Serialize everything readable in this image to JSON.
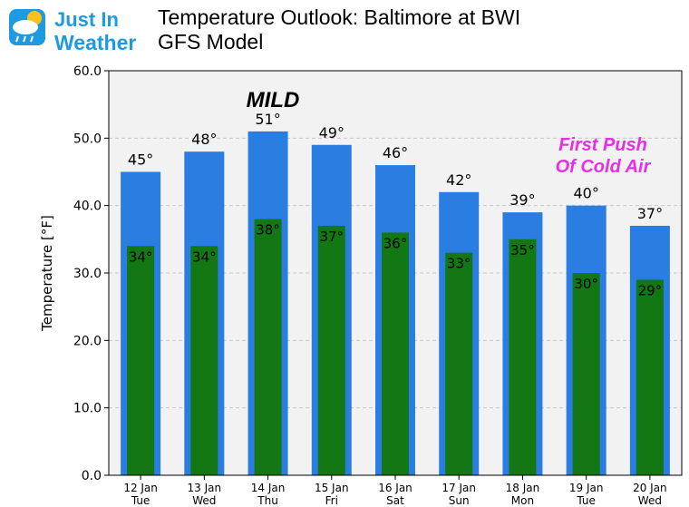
{
  "logo": {
    "line1": "Just In",
    "line2": "Weather"
  },
  "title": {
    "line1": "Temperature Outlook: Baltimore at BWI",
    "line2": "GFS Model"
  },
  "colors": {
    "high": "#2a7de1",
    "low": "#137713",
    "plot_bg": "#f2f2f2",
    "logo": "#1e9be0",
    "annotation_cold": "#e62ee6"
  },
  "chart_data": {
    "type": "bar",
    "title": "Temperature Outlook: Baltimore at BWI",
    "ylabel": "Temperature [°F]",
    "xlabel": "",
    "ylim": [
      0,
      60
    ],
    "yticks": [
      "0.0",
      "10.0",
      "20.0",
      "30.0",
      "40.0",
      "50.0",
      "60.0"
    ],
    "grid": true,
    "categories": [
      {
        "date": "12 Jan",
        "day": "Tue"
      },
      {
        "date": "13 Jan",
        "day": "Wed"
      },
      {
        "date": "14 Jan",
        "day": "Thu"
      },
      {
        "date": "15 Jan",
        "day": "Fri"
      },
      {
        "date": "16 Jan",
        "day": "Sat"
      },
      {
        "date": "17 Jan",
        "day": "Sun"
      },
      {
        "date": "18 Jan",
        "day": "Mon"
      },
      {
        "date": "19 Jan",
        "day": "Tue"
      },
      {
        "date": "20 Jan",
        "day": "Wed"
      }
    ],
    "series": [
      {
        "values": [
          45,
          48,
          51,
          49,
          46,
          42,
          39,
          40,
          37
        ],
        "labels": [
          "45°",
          "48°",
          "51°",
          "49°",
          "46°",
          "42°",
          "39°",
          "40°",
          "37°"
        ]
      },
      {
        "values": [
          34,
          34,
          38,
          37,
          36,
          33,
          35,
          30,
          29
        ],
        "labels": [
          "34°",
          "34°",
          "38°",
          "37°",
          "36°",
          "33°",
          "35°",
          "30°",
          "29°"
        ]
      }
    ],
    "annotations": {
      "mild": "MILD",
      "cold_line1": "First Push",
      "cold_line2": "Of Cold Air"
    }
  }
}
